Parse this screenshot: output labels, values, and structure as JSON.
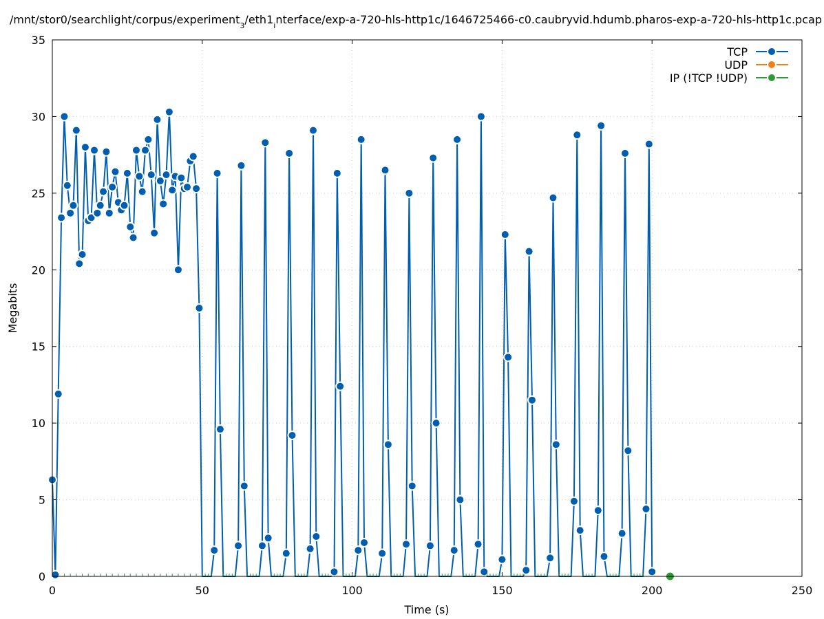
{
  "chart_data": {
    "type": "line",
    "title_parts": [
      "/mnt/stor0/searchlight/corpus/experiment",
      "3",
      "/eth1",
      "i",
      "nterface/exp-a-720-hls-http1c/1646725466-c0.caubryvid.hdumb.pharos-exp-a-720-hls-http1c.pcap"
    ],
    "xlabel": "Time (s)",
    "ylabel": "Megabits",
    "xlim": [
      0,
      250
    ],
    "ylim": [
      0,
      35
    ],
    "xticks": [
      0,
      50,
      100,
      150,
      200,
      250
    ],
    "yticks": [
      0,
      5,
      10,
      15,
      20,
      25,
      30,
      35
    ],
    "grid": true,
    "legend_position": "top-right",
    "series": [
      {
        "name": "TCP",
        "color": "#005eb0",
        "marker": "circle",
        "x": [
          0,
          1,
          2,
          3,
          4,
          5,
          6,
          7,
          8,
          9,
          10,
          11,
          12,
          13,
          14,
          15,
          16,
          17,
          18,
          19,
          20,
          21,
          22,
          23,
          24,
          25,
          26,
          27,
          28,
          29,
          30,
          31,
          32,
          33,
          34,
          35,
          36,
          37,
          38,
          39,
          40,
          41,
          42,
          43,
          44,
          45,
          46,
          47,
          48,
          49,
          50,
          51,
          52,
          53,
          54,
          55,
          56,
          57,
          58,
          59,
          60,
          61,
          62,
          63,
          64,
          65,
          66,
          67,
          68,
          69,
          70,
          71,
          72,
          73,
          74,
          75,
          76,
          77,
          78,
          79,
          80,
          81,
          82,
          83,
          84,
          85,
          86,
          87,
          88,
          89,
          90,
          91,
          92,
          93,
          94,
          95,
          96,
          97,
          98,
          99,
          100,
          101,
          102,
          103,
          104,
          105,
          106,
          107,
          108,
          109,
          110,
          111,
          112,
          113,
          114,
          115,
          116,
          117,
          118,
          119,
          120,
          121,
          122,
          123,
          124,
          125,
          126,
          127,
          128,
          129,
          130,
          131,
          132,
          133,
          134,
          135,
          136,
          137,
          138,
          139,
          140,
          141,
          142,
          143,
          144,
          145,
          146,
          147,
          148,
          149,
          150,
          151,
          152,
          153,
          154,
          155,
          156,
          157,
          158,
          159,
          160,
          161,
          162,
          163,
          164,
          165,
          166,
          167,
          168,
          169,
          170,
          171,
          172,
          173,
          174,
          175,
          176,
          177,
          178,
          179,
          180,
          181,
          182,
          183,
          184,
          185,
          186,
          187,
          188,
          189,
          190,
          191,
          192,
          193,
          194,
          195,
          196,
          197,
          198,
          199,
          200
        ],
        "y": [
          6.3,
          0.1,
          11.9,
          23.4,
          30.0,
          25.5,
          23.7,
          24.2,
          29.1,
          20.4,
          21.0,
          28.0,
          23.2,
          23.4,
          27.8,
          23.7,
          24.2,
          25.1,
          27.7,
          23.7,
          25.4,
          26.4,
          24.4,
          23.9,
          24.2,
          26.3,
          22.8,
          22.1,
          27.8,
          26.1,
          25.1,
          27.8,
          28.5,
          26.2,
          22.4,
          29.8,
          25.8,
          24.3,
          26.2,
          30.3,
          25.2,
          26.1,
          20.0,
          26.0,
          25.3,
          25.4,
          27.1,
          27.4,
          25.3,
          17.5,
          0,
          0,
          0,
          0,
          1.7,
          26.3,
          9.6,
          0,
          0,
          0,
          0,
          0,
          2.0,
          26.8,
          5.9,
          0,
          0,
          0,
          0,
          0,
          2.0,
          28.3,
          2.5,
          0,
          0,
          0,
          0,
          0,
          1.5,
          27.6,
          9.2,
          0,
          0,
          0,
          0,
          0,
          1.8,
          29.1,
          2.6,
          0,
          0,
          0,
          0,
          0,
          0.3,
          26.3,
          12.4,
          0,
          0,
          0,
          0,
          0,
          1.7,
          28.5,
          2.2,
          0,
          0,
          0,
          0,
          0,
          1.5,
          26.5,
          8.6,
          0,
          0,
          0,
          0,
          0,
          2.1,
          25.0,
          5.9,
          0,
          0,
          0,
          0,
          0,
          2.0,
          27.3,
          10.0,
          0,
          0,
          0,
          0,
          0,
          1.7,
          28.5,
          5.0,
          0,
          0,
          0,
          0,
          0,
          2.1,
          30.0,
          0.3,
          0,
          0,
          0,
          0,
          0,
          1.1,
          22.3,
          14.3,
          0,
          0,
          0,
          0,
          0,
          0.4,
          21.2,
          11.5,
          0,
          0,
          0,
          0,
          0,
          1.2,
          24.7,
          8.6,
          0,
          0,
          0,
          0,
          0,
          4.9,
          28.8,
          3.0,
          0,
          0,
          0,
          0,
          0,
          4.3,
          29.4,
          1.3,
          0,
          0,
          0,
          0,
          0,
          2.8,
          27.6,
          8.2,
          0,
          0,
          0,
          0,
          0,
          4.4,
          28.2,
          0.3
        ]
      },
      {
        "name": "UDP",
        "color": "#f57f17",
        "marker": "circle",
        "x": [],
        "y": []
      },
      {
        "name": "IP (!TCP  !UDP)",
        "color": "#2e9a35",
        "marker": "circle",
        "x": [
          0,
          2,
          4,
          6,
          8,
          10,
          12,
          14,
          16,
          18,
          20,
          22,
          24,
          26,
          28,
          30,
          32,
          34,
          36,
          38,
          40,
          42,
          44,
          46,
          48,
          206
        ],
        "y": [
          0,
          0,
          0,
          0,
          0,
          0,
          0,
          0,
          0,
          0,
          0,
          0,
          0,
          0,
          0,
          0,
          0,
          0,
          0,
          0,
          0,
          0,
          0,
          0,
          0,
          0
        ]
      }
    ]
  }
}
